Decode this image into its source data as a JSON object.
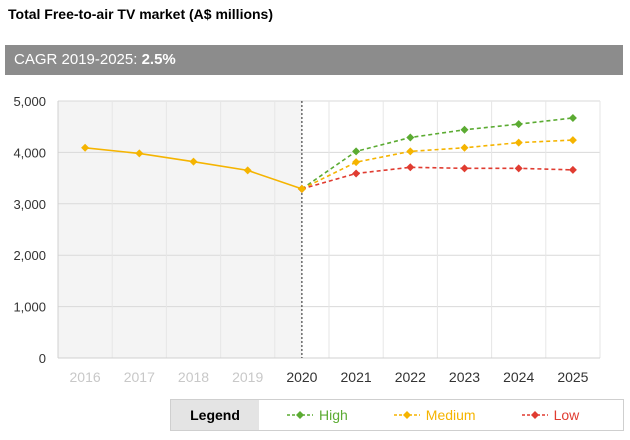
{
  "title": "Total Free-to-air TV market (A$ millions)",
  "cagr": {
    "label": "CAGR 2019-2025: ",
    "value": "2.5%"
  },
  "legend": {
    "title": "Legend",
    "items": [
      {
        "name": "High",
        "color": "#5bab32"
      },
      {
        "name": "Medium",
        "color": "#f5b400"
      },
      {
        "name": "Low",
        "color": "#e03c31"
      }
    ]
  },
  "chart_data": {
    "type": "line",
    "x": [
      "2016",
      "2017",
      "2018",
      "2019",
      "2020",
      "2021",
      "2022",
      "2023",
      "2024",
      "2025"
    ],
    "ylim": [
      0,
      5000
    ],
    "yticks": [
      "0",
      "1,000",
      "2,000",
      "3,000",
      "4,000",
      "5,000"
    ],
    "historical": {
      "x": [
        "2016",
        "2017",
        "2018",
        "2019",
        "2020"
      ],
      "values": [
        4090,
        3980,
        3820,
        3650,
        3290
      ],
      "color": "#f5b400"
    },
    "series": [
      {
        "name": "High",
        "x": [
          "2020",
          "2021",
          "2022",
          "2023",
          "2024",
          "2025"
        ],
        "values": [
          3290,
          4020,
          4290,
          4440,
          4550,
          4670
        ],
        "color": "#5bab32"
      },
      {
        "name": "Medium",
        "x": [
          "2020",
          "2021",
          "2022",
          "2023",
          "2024",
          "2025"
        ],
        "values": [
          3290,
          3810,
          4020,
          4090,
          4190,
          4240
        ],
        "color": "#f5b400"
      },
      {
        "name": "Low",
        "x": [
          "2020",
          "2021",
          "2022",
          "2023",
          "2024",
          "2025"
        ],
        "values": [
          3290,
          3590,
          3710,
          3690,
          3690,
          3660
        ],
        "color": "#e03c31"
      }
    ],
    "historical_tick_color": "#c8c8c8",
    "forecast_tick_color": "#333333",
    "grid": true
  }
}
